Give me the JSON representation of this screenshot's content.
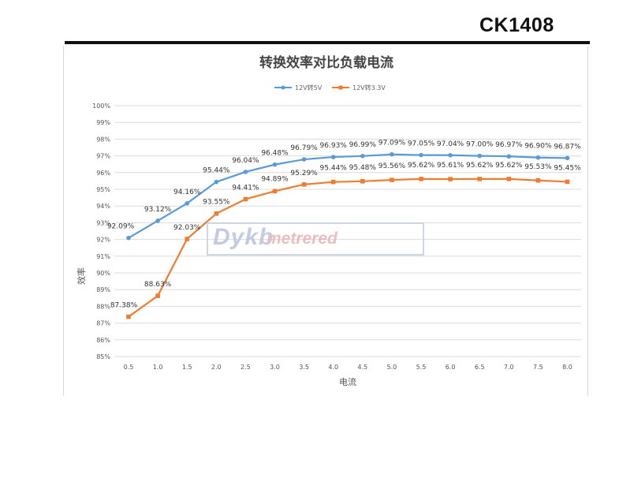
{
  "header": {
    "model": "CK1408"
  },
  "watermark": {
    "brand": "Dykb",
    "suffix": "metrered"
  },
  "chart_data": {
    "type": "line",
    "title": "转换效率对比负载电流",
    "xlabel": "电流",
    "ylabel": "效率",
    "categories": [
      "0.5",
      "1.0",
      "1.5",
      "2.0",
      "2.5",
      "3.0",
      "3.5",
      "4.0",
      "4.5",
      "5.0",
      "5.5",
      "6.0",
      "6.5",
      "7.0",
      "7.5",
      "8.0"
    ],
    "yticks": [
      "85%",
      "86%",
      "87%",
      "88%",
      "89%",
      "90%",
      "91%",
      "92%",
      "93%",
      "94%",
      "95%",
      "96%",
      "97%",
      "98%",
      "99%",
      "100%"
    ],
    "ylim": [
      85,
      100
    ],
    "grid": true,
    "legend_position": "top",
    "series": [
      {
        "name": "12V转5V",
        "color": "#5b9bd5",
        "values": [
          92.09,
          93.12,
          94.16,
          95.44,
          96.04,
          96.48,
          96.79,
          96.93,
          96.99,
          97.09,
          97.05,
          97.04,
          97.0,
          96.97,
          96.9,
          96.87
        ],
        "labels": [
          "92.09%",
          "93.12%",
          "94.16%",
          "95.44%",
          "96.04%",
          "96.48%",
          "96.79%",
          "96.93%",
          "96.99%",
          "97.09%",
          "97.05%",
          "97.04%",
          "97.00%",
          "96.97%",
          "96.90%",
          "96.87%"
        ]
      },
      {
        "name": "12V转3.3V",
        "color": "#ed7d31",
        "values": [
          87.38,
          88.63,
          92.03,
          93.55,
          94.41,
          94.89,
          95.29,
          95.44,
          95.48,
          95.56,
          95.62,
          95.61,
          95.62,
          95.62,
          95.53,
          95.45
        ],
        "labels": [
          "87.38%",
          "88.63%",
          "92.03%",
          "93.55%",
          "94.41%",
          "94.89%",
          "95.29%",
          "95.44%",
          "95.48%",
          "95.56%",
          "95.62%",
          "95.61%",
          "95.62%",
          "95.62%",
          "95.53%",
          "95.45%"
        ]
      }
    ]
  }
}
